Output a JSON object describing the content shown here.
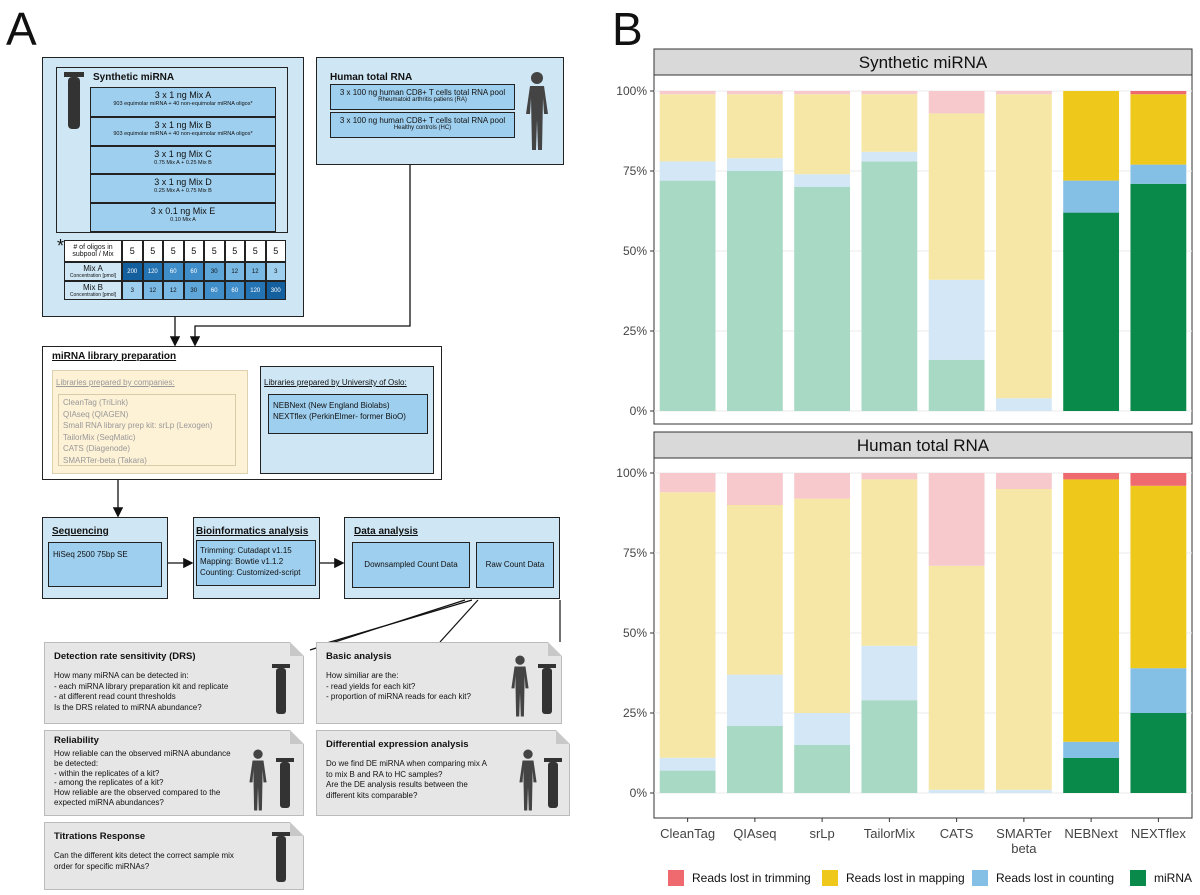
{
  "panel_a": {
    "letter": "A",
    "synthetic": {
      "title": "Synthetic miRNA",
      "mixes": [
        {
          "name": "3 x  1 ng Mix A",
          "desc": "903 equimolar miRNA + 40  non-equimolar miRNA oligos*"
        },
        {
          "name": "3 x  1 ng Mix B",
          "desc": "903 equimolar miRNA + 40  non-equimolar miRNA oligos*"
        },
        {
          "name": "3 x  1 ng Mix C",
          "desc": "0.75 Mix A  + 0.25 Mix B"
        },
        {
          "name": "3 x 1 ng Mix D",
          "desc": "0.25 Mix A  + 0.75 Mix B"
        },
        {
          "name": "3 x 0.1 ng Mix E",
          "desc": "0.10 Mix A"
        }
      ],
      "asterisk": "*",
      "table": {
        "row0_label": "# of oligos in subpool / Mix",
        "row0_values": [
          "5",
          "5",
          "5",
          "5",
          "5",
          "5",
          "5",
          "5"
        ],
        "row1_label": "Mix A",
        "row1_sub": "Concentration [pmol]",
        "row1_values": [
          "200",
          "120",
          "60",
          "60",
          "30",
          "12",
          "12",
          "3"
        ],
        "row2_label": "Mix B",
        "row2_sub": "Concentration [pmol]",
        "row2_values": [
          "3",
          "12",
          "12",
          "30",
          "60",
          "60",
          "120",
          "300"
        ]
      }
    },
    "human": {
      "title": "Human total RNA",
      "pools": [
        {
          "name": "3 x 100 ng human CD8+ T cells total RNA pool",
          "desc": "Rheumatoid arthritis patiens (RA)"
        },
        {
          "name": "3 x 100 ng human CD8+ T cells total RNA pool",
          "desc": "Healthy controls (HC)"
        }
      ]
    },
    "library": {
      "title": "miRNA library preparation",
      "companies_title": "Libraries prepared by companies:",
      "companies": [
        "CleanTag (TriLink)",
        "QIAseq (QIAGEN)",
        "Small RNA library prep kit: srLp (Lexogen)",
        "TailorMix (SeqMatic)",
        "CATS (Diagenode)",
        "SMARTer-beta (Takara)"
      ],
      "oslo_title": "Libraries prepared by University of Oslo:",
      "oslo": [
        "NEBNext (New England Biolabs)",
        "NEXTflex (PerkinElmer- former BioO)"
      ]
    },
    "sequencing": {
      "title": "Sequencing",
      "detail": "HiSeq 2500 75bp SE"
    },
    "bioinf": {
      "title": "Bioinformatics analysis",
      "lines": [
        "Trimming: Cutadapt v1.15",
        "Mapping: Bowtie v1.1.2",
        "Counting: Customized-script"
      ]
    },
    "data_analysis": {
      "title": "Data analysis",
      "downsampled": "Downsampled Count Data",
      "raw": "Raw Count Data"
    },
    "cards": {
      "drs": {
        "title": "Detection rate sensitivity (DRS)",
        "body": "How many miRNA can be detected in:\n-      each miRNA library preparation kit and replicate\n-      at different read count thresholds\nIs the DRS related to miRNA abundance?"
      },
      "basic": {
        "title": "Basic analysis",
        "body": "How similiar are the:\n-      read yields for each kit?\n-      proportion of miRNA reads for each kit?"
      },
      "reliability": {
        "title": "Reliability",
        "body": "How reliable can the observed miRNA abundance\nbe detected:\n-      within the replicates of a kit?\n-      among the replicates of a kit?\nHow reliable are the observed compared to the\nexpected miRNA abundances?"
      },
      "de": {
        "title": "Differential expression analysis",
        "body": "Do we find DE miRNA when comparing mix A\nto mix B and RA to HC samples?\nAre the DE analysis results between the\ndifferent kits comparable?"
      },
      "titration": {
        "title": "Titrations Response",
        "body": "Can the different kits detect the correct sample mix\norder for specific miRNAs?"
      }
    }
  },
  "panel_b": {
    "letter": "B"
  },
  "colors": {
    "trim": "#ee6a6f",
    "map": "#efc81c",
    "count": "#84bfe6",
    "mirna": "#0a8a4a",
    "bg_light": "#cfe6f4",
    "box_mid": "#9fcfee"
  },
  "chart_data": {
    "type": "bar",
    "stacked": true,
    "normalized": true,
    "categories": [
      "CleanTag",
      "QIAseq",
      "srLp",
      "TailorMix",
      "CATS",
      "SMARTer\nbeta",
      "NEBNext",
      "NEXTflex"
    ],
    "highlighted_categories": [
      "NEBNext",
      "NEXTflex"
    ],
    "facets": [
      {
        "title": "Synthetic miRNA",
        "series": [
          {
            "name": "miRNA",
            "values": [
              72,
              75,
              70,
              78,
              16,
              0,
              62,
              71
            ]
          },
          {
            "name": "Reads lost in counting",
            "values": [
              6,
              4,
              4,
              3,
              25,
              4,
              10,
              6
            ]
          },
          {
            "name": "Reads lost in mapping",
            "values": [
              21,
              20,
              25,
              18,
              52,
              95,
              28,
              22
            ]
          },
          {
            "name": "Reads lost in trimming",
            "values": [
              1,
              1,
              1,
              1,
              7,
              1,
              0,
              1
            ]
          }
        ]
      },
      {
        "title": "Human total RNA",
        "series": [
          {
            "name": "miRNA",
            "values": [
              7,
              21,
              15,
              29,
              0,
              0,
              11,
              25
            ]
          },
          {
            "name": "Reads lost in counting",
            "values": [
              4,
              16,
              10,
              17,
              1,
              1,
              5,
              14
            ]
          },
          {
            "name": "Reads lost in mapping",
            "values": [
              83,
              53,
              67,
              52,
              70,
              94,
              82,
              57
            ]
          },
          {
            "name": "Reads lost in trimming",
            "values": [
              6,
              10,
              8,
              2,
              29,
              5,
              2,
              4
            ]
          }
        ]
      }
    ],
    "ytick_labels": [
      "0%",
      "25%",
      "50%",
      "75%",
      "100%"
    ],
    "ylim": [
      0,
      100
    ],
    "xlabel": "",
    "ylabel": "",
    "legend": [
      "Reads lost in trimming",
      "Reads lost in mapping",
      "Reads lost in counting",
      "miRNA"
    ],
    "legend_position": "bottom",
    "grid": true
  }
}
